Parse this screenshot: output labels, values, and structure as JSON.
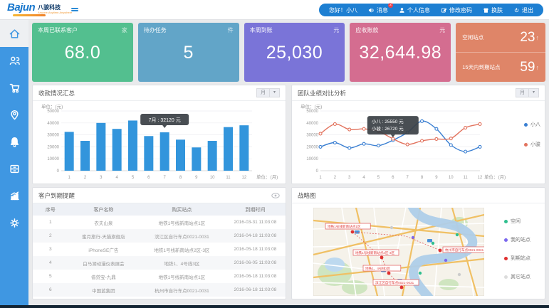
{
  "ui": {
    "caret": "▾",
    "up_arrow": "↑"
  },
  "header": {
    "logo_text": "Bajun",
    "logo_cn": "八骏科技",
    "logo_tagline": "Anyone.Anytime.Anywhere",
    "greeting": "您好！小八",
    "menu": [
      {
        "icon": "speaker-icon",
        "label": "消息",
        "badge": "2"
      },
      {
        "icon": "person-icon",
        "label": "个人信息"
      },
      {
        "icon": "edit-icon",
        "label": "修改密码"
      },
      {
        "icon": "shirt-icon",
        "label": "换肤"
      },
      {
        "icon": "power-icon",
        "label": "退出"
      }
    ]
  },
  "sidebar": {
    "items": [
      {
        "icon": "home-icon",
        "active": true
      },
      {
        "icon": "contacts-icon",
        "active": false
      },
      {
        "icon": "cart-icon",
        "active": false
      },
      {
        "icon": "location-pin-icon",
        "active": false
      },
      {
        "icon": "bell-icon",
        "active": false
      },
      {
        "icon": "drawer-icon",
        "active": false
      },
      {
        "icon": "stats-icon",
        "active": false
      },
      {
        "icon": "gear-icon",
        "active": false
      }
    ]
  },
  "kpi_cards": [
    {
      "title": "本周已联系客户",
      "unit": "家",
      "value": "68.0",
      "color": "#53bf8f"
    },
    {
      "title": "待办任务",
      "unit": "件",
      "value": "5",
      "color": "#62a5c8"
    },
    {
      "title": "本周到账",
      "unit": "元",
      "value": "25,030",
      "color": "#7a74d8"
    },
    {
      "title": "应收账款",
      "unit": "元",
      "value": "32,644.98",
      "color": "#d46d90"
    }
  ],
  "site_card": {
    "color": "#df8568",
    "rows": [
      {
        "label": "空闲站点",
        "value": "23"
      },
      {
        "label": "15天内到期站点",
        "value": "59"
      }
    ]
  },
  "panels": {
    "collection": {
      "title": "收款情况汇总",
      "filter": "月"
    },
    "team": {
      "title": "团队业绩对比分析",
      "filter": "月"
    },
    "reminder": {
      "title": "客户到期提醒"
    },
    "strategy": {
      "title": "战略图"
    }
  },
  "chart_data": [
    {
      "type": "bar",
      "title": "收款情况汇总",
      "categories": [
        "1",
        "2",
        "3",
        "4",
        "5",
        "6",
        "7",
        "8",
        "9",
        "10",
        "11",
        "12"
      ],
      "values": [
        32500,
        25000,
        40000,
        35000,
        42000,
        29000,
        32120,
        26000,
        19500,
        25000,
        36500,
        38000
      ],
      "xlabel": "单位：(月)",
      "ylabel": "单位：(元)",
      "ylim": [
        0,
        50000
      ],
      "yticks": [
        0,
        10000,
        20000,
        30000,
        40000,
        50000
      ],
      "bar_color": "#3295dc",
      "grid": true,
      "tooltip": {
        "index": 6,
        "text": "7月 : 32120 元"
      }
    },
    {
      "type": "line",
      "title": "团队业绩对比分析",
      "categories": [
        "1",
        "2",
        "3",
        "4",
        "5",
        "6",
        "7",
        "8",
        "9",
        "10",
        "11",
        "12"
      ],
      "series": [
        {
          "name": "小八",
          "color": "#3a7fd2",
          "values": [
            20000,
            23500,
            19000,
            22500,
            21000,
            25550,
            32000,
            41500,
            35000,
            21500,
            16000,
            20000
          ]
        },
        {
          "name": "小骏",
          "color": "#e2735e",
          "values": [
            31000,
            39000,
            34500,
            35000,
            33000,
            26720,
            22000,
            25000,
            26500,
            27000,
            36000,
            39000
          ]
        }
      ],
      "xlabel": "单位：(月)",
      "ylabel": "单位：(元)",
      "ylim": [
        0,
        50000
      ],
      "yticks": [
        0,
        10000,
        20000,
        30000,
        40000,
        50000
      ],
      "legend_position": "right",
      "grid": true,
      "tooltip": {
        "index": 5,
        "lines": [
          "小八 : 25550 元",
          "小骏 : 26720 元"
        ]
      }
    }
  ],
  "reminder_table": {
    "headers": [
      "序号",
      "客户名称",
      "购买站点",
      "到期时间"
    ],
    "rows": [
      [
        "1",
        "农夫山泉",
        "地铁1号线新南站点1区",
        "2016-03-31 11:03:08"
      ],
      [
        "2",
        "蜜月旅行-天猫旗舰店",
        "滨江区自行车点0021-0031",
        "2016-04-18 11:03:08"
      ],
      [
        "3",
        "iPhoneSE广告",
        "地铁1号线新南站点2区-3区",
        "2016-05-18 11:03:08"
      ],
      [
        "4",
        "白马湖动漫仪表展会",
        "地铁1、4号线3区",
        "2016-06-05 11:03:08"
      ],
      [
        "5",
        "借贷宝-九鼎",
        "地铁1号线新南站点1区",
        "2016-06-18 11:03:08"
      ],
      [
        "6",
        "中国蓝集团",
        "杭州市自行车点0021-0031",
        "2016-06-18 11:03:08"
      ]
    ]
  },
  "map": {
    "legend": [
      {
        "label": "空闲",
        "color": "#2fbf8f"
      },
      {
        "label": "我的站点",
        "color": "#7b68ee"
      },
      {
        "label": "到期站点",
        "color": "#e03030"
      },
      {
        "label": "其它站点",
        "color": "#dcdcdc"
      }
    ],
    "markers": [
      {
        "label": "地铁1号线新南站点1区"
      },
      {
        "label": "地铁1号线新南站点2区-3区"
      },
      {
        "label": "地铁1、4号线3区"
      },
      {
        "label": "滨江区自行车点0021-0031"
      },
      {
        "label": "杭州市自行车点0021-0031"
      }
    ]
  }
}
